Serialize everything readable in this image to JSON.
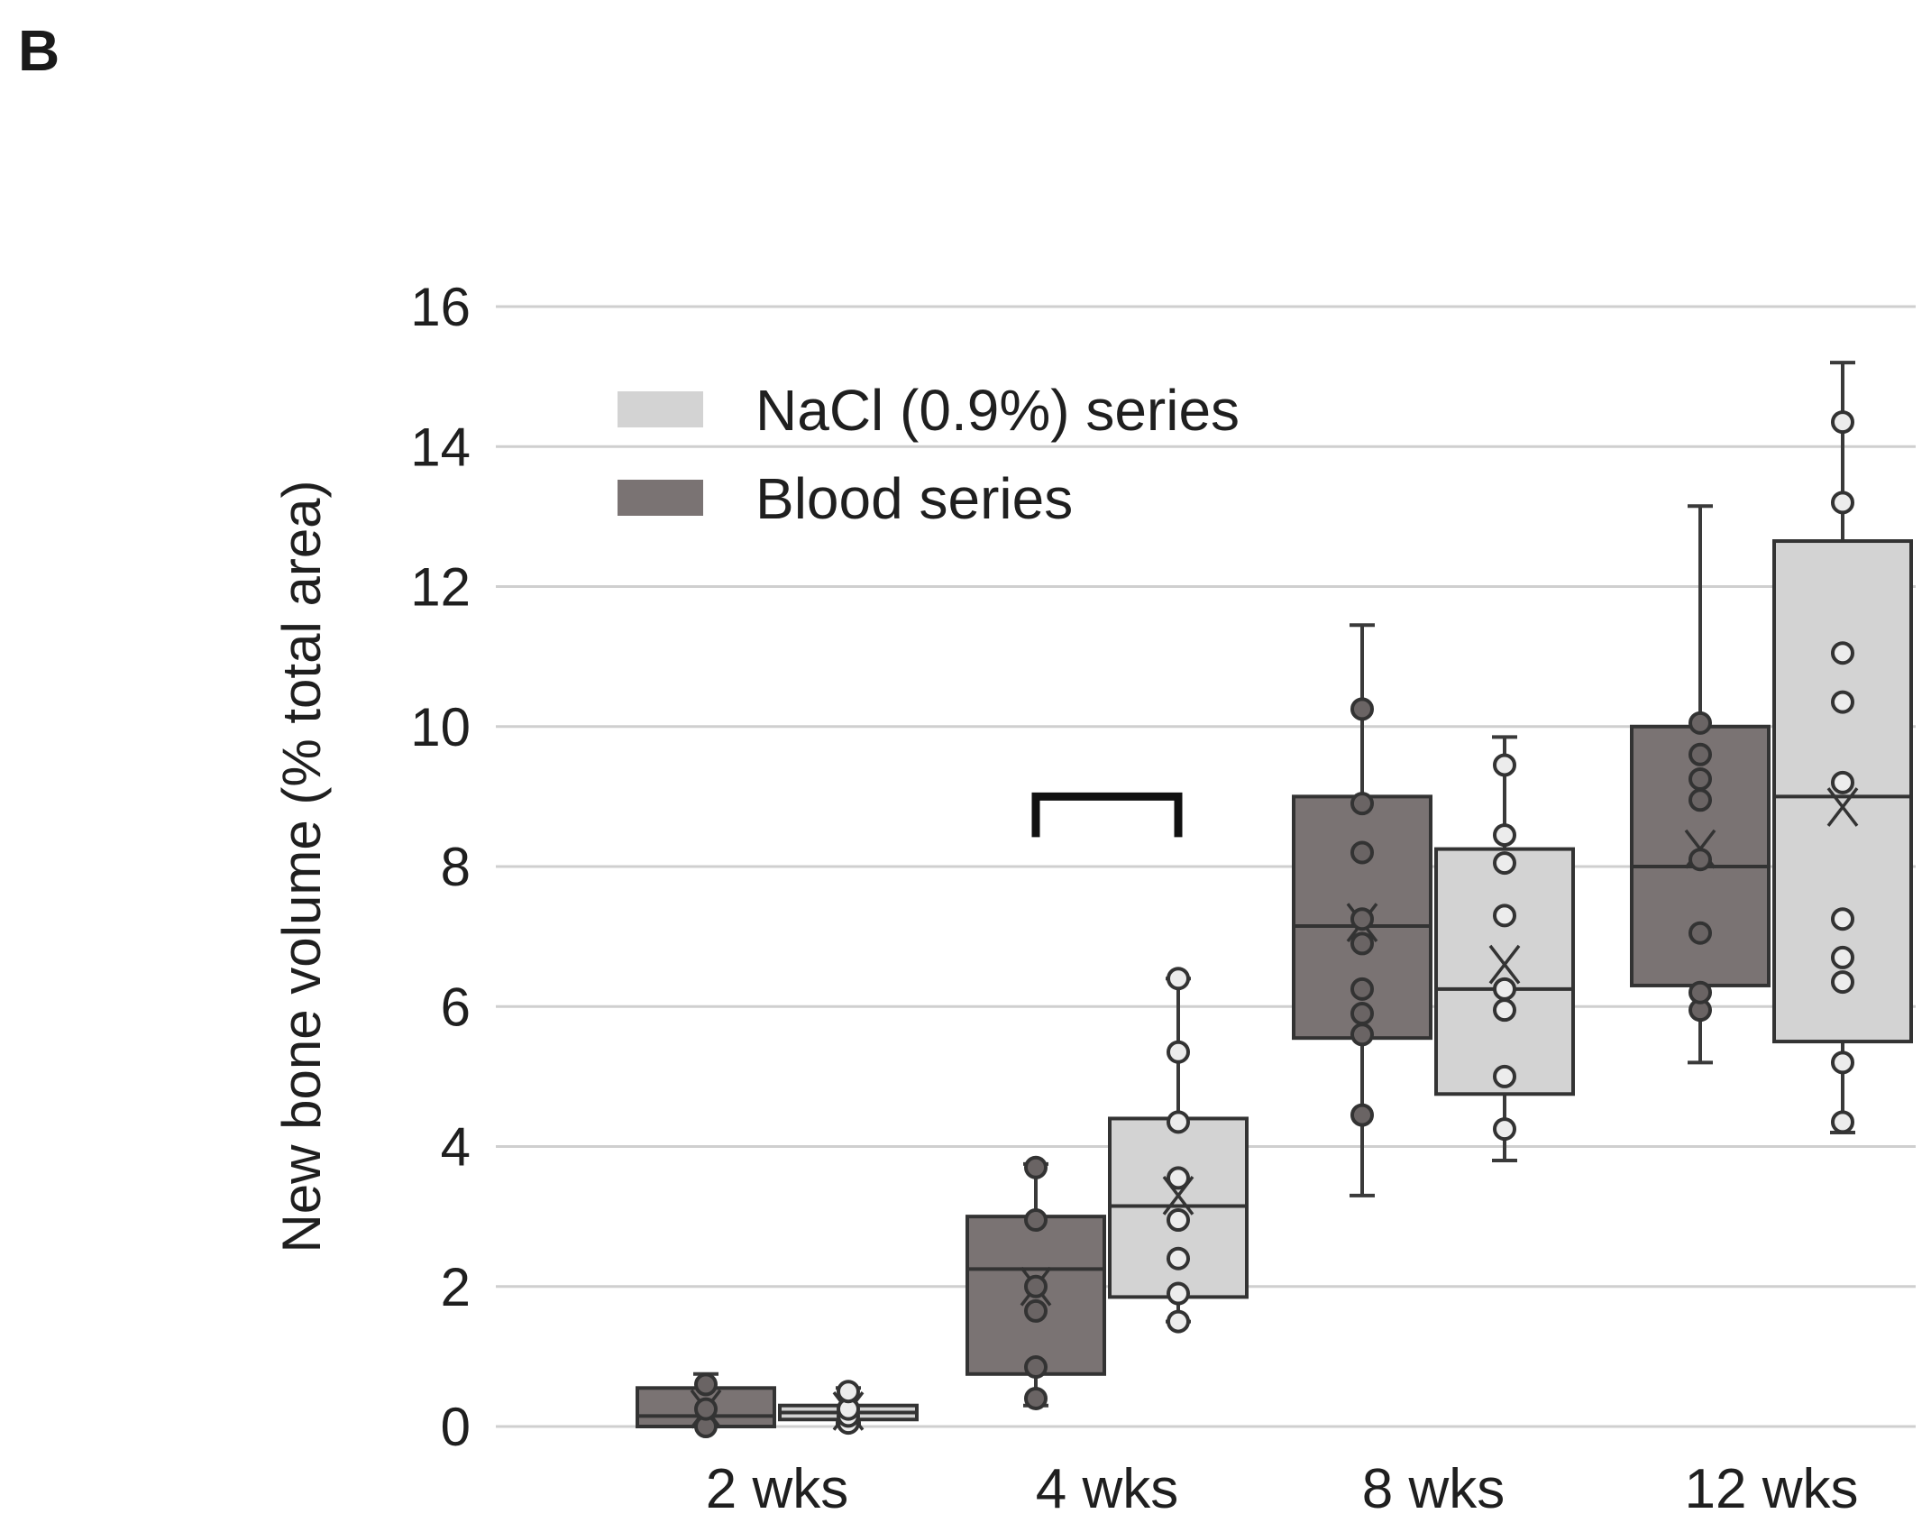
{
  "panel_label": "B",
  "chart_data": {
    "type": "box",
    "title": "",
    "xlabel": "",
    "ylabel": "New bone volume  (% total area)",
    "ylim": [
      0,
      16
    ],
    "yticks": [
      0,
      2,
      4,
      6,
      8,
      10,
      12,
      14,
      16
    ],
    "grid": true,
    "legend_position": "top-left",
    "categories": [
      "2 wks",
      "4 wks",
      "8 wks",
      "12 wks"
    ],
    "series": [
      {
        "name": "NaCl (0.9%) series",
        "color": "#d3d3d3",
        "boxes": [
          {
            "whisker_low": 0.05,
            "q1": 0.1,
            "median": 0.2,
            "q3": 0.3,
            "whisker_high": 0.55,
            "mean": 0.22,
            "points": [
              0.05,
              0.15,
              0.25,
              0.5
            ]
          },
          {
            "whisker_low": 1.5,
            "q1": 1.85,
            "median": 3.15,
            "q3": 4.4,
            "whisker_high": 6.4,
            "mean": 3.3,
            "points": [
              1.5,
              1.9,
              2.4,
              2.95,
              3.55,
              4.35,
              5.35,
              6.4
            ]
          },
          {
            "whisker_low": 3.8,
            "q1": 4.75,
            "median": 6.25,
            "q3": 8.25,
            "whisker_high": 9.85,
            "mean": 6.6,
            "points": [
              4.25,
              5.0,
              5.95,
              6.25,
              7.3,
              8.05,
              8.45,
              9.45
            ]
          },
          {
            "whisker_low": 4.2,
            "q1": 5.5,
            "median": 9.0,
            "q3": 12.65,
            "whisker_high": 15.2,
            "mean": 8.85,
            "points": [
              4.35,
              5.2,
              6.35,
              6.7,
              7.25,
              9.2,
              10.35,
              11.05,
              13.2,
              14.35
            ]
          }
        ]
      },
      {
        "name": "Blood series",
        "color": "#7a7373",
        "boxes": [
          {
            "whisker_low": 0.0,
            "q1": 0.0,
            "median": 0.15,
            "q3": 0.55,
            "whisker_high": 0.75,
            "mean": 0.25,
            "points": [
              0.0,
              0.25,
              0.6
            ]
          },
          {
            "whisker_low": 0.3,
            "q1": 0.75,
            "median": 2.25,
            "q3": 3.0,
            "whisker_high": 3.75,
            "mean": 2.0,
            "points": [
              0.4,
              0.85,
              1.65,
              2.0,
              2.95,
              3.7
            ]
          },
          {
            "whisker_low": 3.3,
            "q1": 5.55,
            "median": 7.15,
            "q3": 9.0,
            "whisker_high": 11.45,
            "mean": 7.2,
            "points": [
              4.45,
              5.6,
              5.9,
              6.25,
              6.9,
              7.25,
              8.2,
              8.9,
              10.25
            ]
          },
          {
            "whisker_low": 5.2,
            "q1": 6.3,
            "median": 8.0,
            "q3": 10.0,
            "whisker_high": 13.15,
            "mean": 8.25,
            "points": [
              5.95,
              6.2,
              7.05,
              8.1,
              8.95,
              9.25,
              9.6,
              10.05
            ]
          }
        ]
      }
    ],
    "annotations": [
      {
        "type": "bracket",
        "category_index": 1,
        "from_series": "Blood series",
        "to_series": "NaCl (0.9%) series",
        "y": 9.0
      }
    ]
  }
}
